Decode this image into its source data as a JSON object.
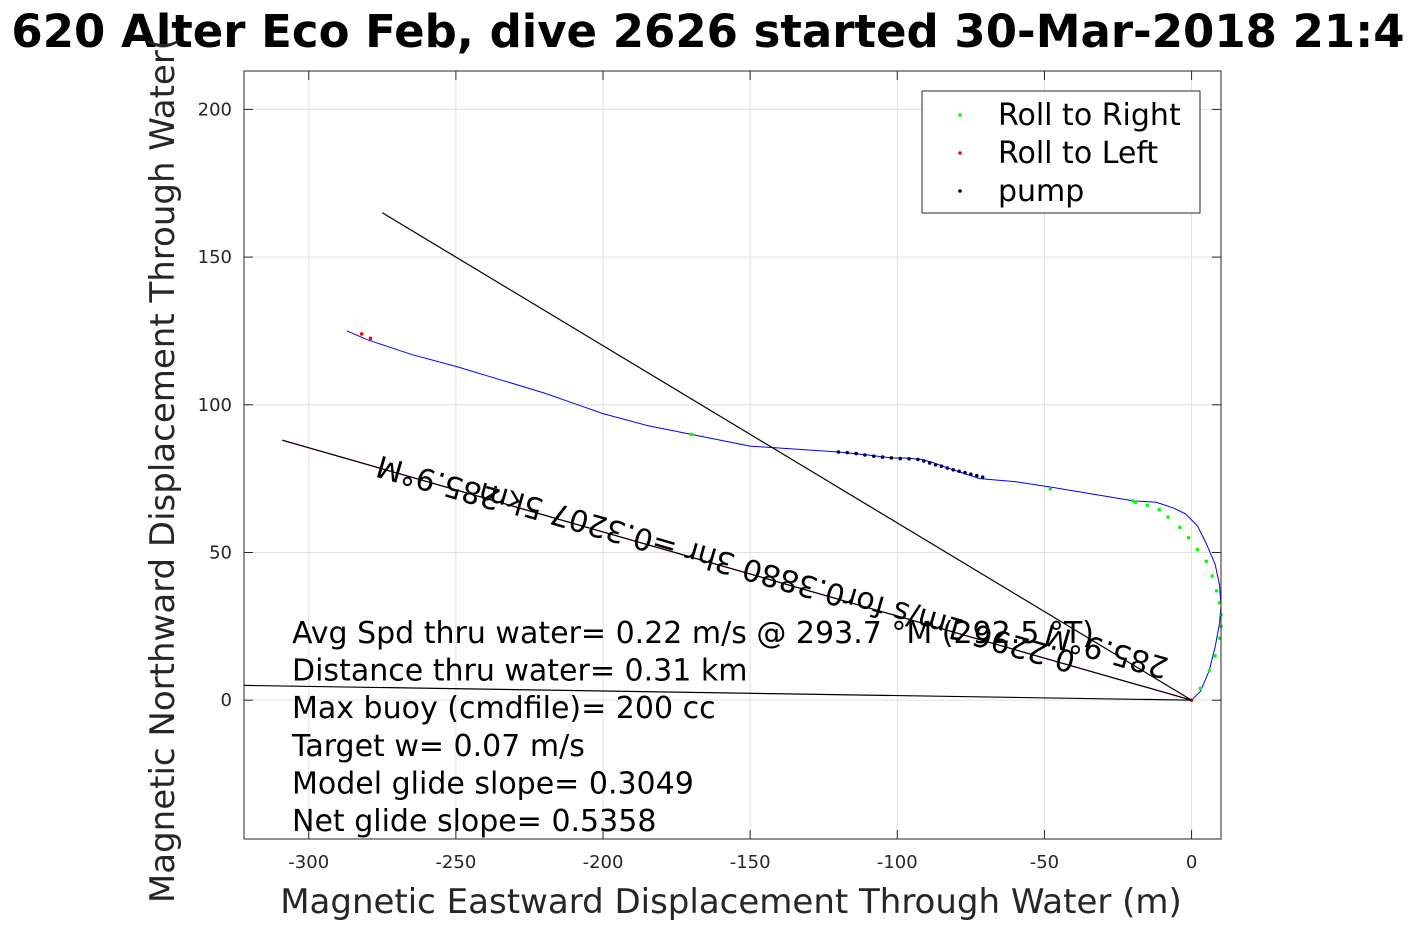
{
  "chart_data": {
    "type": "line",
    "title": "620 Alter Eco Feb, dive 2626 started 30-Mar-2018 21:4",
    "xlabel": "Magnetic Eastward Displacement Through Water (m)",
    "ylabel": "Magnetic Northward Displacement Through Water(",
    "xlim": [
      -322,
      10
    ],
    "ylim": [
      -47,
      213
    ],
    "xticks": [
      -300,
      -250,
      -200,
      -150,
      -100,
      -50,
      0
    ],
    "yticks": [
      0,
      50,
      100,
      150,
      200
    ],
    "grid": true,
    "legend_position": "top-right",
    "legend": [
      {
        "label": "Roll to Right",
        "color": "#00ff00"
      },
      {
        "label": "Roll to Left",
        "color": "#ff0000"
      },
      {
        "label": "pump",
        "color": "#000033"
      }
    ],
    "series": [
      {
        "kind": "track",
        "color": "#0000ff",
        "x": [
          0,
          3,
          6,
          8,
          9.5,
          10,
          9.5,
          8,
          5,
          2,
          -2,
          -6,
          -12,
          -20,
          -35,
          -47,
          -60,
          -72,
          -78,
          -84,
          -88,
          -92,
          -97,
          -102,
          -110,
          -120,
          -150,
          -170,
          -185,
          -200,
          -210,
          -220,
          -235,
          -250,
          -265,
          -280,
          -287
        ],
        "y": [
          0,
          3,
          10,
          18,
          26,
          32,
          39,
          46,
          53,
          59,
          63,
          65,
          67,
          67.5,
          70,
          72,
          74,
          75,
          77,
          79,
          80.5,
          81.5,
          82,
          82,
          83,
          84,
          86,
          90,
          93,
          97,
          100.5,
          104,
          108.5,
          113,
          117,
          122,
          125
        ]
      },
      {
        "kind": "pump",
        "color": "#000033",
        "x": [
          -120,
          -117,
          -114,
          -111,
          -108,
          -105,
          -102,
          -99,
          -96,
          -93,
          -91,
          -89,
          -87,
          -85,
          -83,
          -81,
          -79,
          -77,
          -75,
          -73,
          -71
        ],
        "y": [
          84,
          83.8,
          83.5,
          83,
          82.6,
          82.3,
          82,
          81.8,
          81.7,
          81.5,
          81,
          80.3,
          79.7,
          79.2,
          78.6,
          78,
          77.5,
          77,
          76.5,
          76,
          75.5
        ]
      },
      {
        "kind": "roll-right",
        "color": "#00ff00",
        "x": [
          -170,
          -48,
          -20,
          -19,
          -15,
          -11,
          -8,
          -4,
          -1,
          2,
          5,
          7,
          8.5,
          9.5,
          10,
          10,
          9.5,
          8,
          6,
          3
        ],
        "y": [
          90,
          71.5,
          67.5,
          67,
          66,
          64.5,
          62,
          58.5,
          55,
          51,
          47,
          42,
          37,
          33,
          29,
          25,
          21,
          15,
          10,
          4
        ]
      },
      {
        "kind": "roll-left",
        "color": "#ff0000",
        "x": [
          -282,
          -279,
          0
        ],
        "y": [
          124,
          122.5,
          0
        ]
      },
      {
        "kind": "line",
        "color": "#000000",
        "x": [
          0,
          -275
        ],
        "y": [
          0,
          165
        ]
      },
      {
        "kind": "line",
        "color": "#000000",
        "x": [
          0,
          -322
        ],
        "y": [
          0,
          5
        ]
      },
      {
        "kind": "line",
        "color": "#ff00ff",
        "x": [
          0,
          -309
        ],
        "y": [
          0,
          88
        ]
      },
      {
        "kind": "line",
        "color": "#000000",
        "x": [
          0,
          -309
        ],
        "y": [
          0,
          88
        ]
      }
    ],
    "annotations": [
      {
        "text": "285.9°M",
        "x": -255,
        "y": 77,
        "angle_deg": 196
      },
      {
        "text": "0.2296 1m/s for0.3880 3hr =0.3207 5km",
        "x": -140,
        "y": 45,
        "angle_deg": 196
      },
      {
        "text": "285.9°M",
        "x": -28,
        "y": 20,
        "angle_deg": 196
      }
    ],
    "notes": [
      "Avg Spd thru water=  0.22 m/s @ 293.7 °M (292.5 °T)",
      "Distance thru water=  0.31 km",
      "Max buoy (cmdfile)= 200 cc",
      "Target w= 0.07 m/s",
      "Model glide slope= 0.3049",
      "Net glide slope= 0.5358"
    ]
  }
}
